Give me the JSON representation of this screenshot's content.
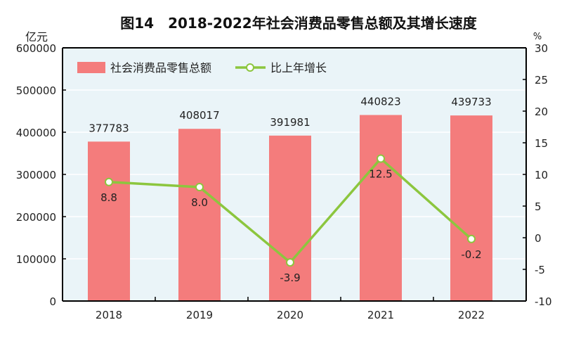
{
  "chart_data": {
    "type": "bar+line",
    "title": "图14　2018-2022年社会消费品零售总额及其增长速度",
    "categories": [
      "2018",
      "2019",
      "2020",
      "2021",
      "2022"
    ],
    "series": [
      {
        "name": "社会消费品零售总额",
        "type": "bar",
        "axis": "left",
        "values": [
          377783,
          408017,
          391981,
          440823,
          439733
        ],
        "labels": [
          "377783",
          "408017",
          "391981",
          "440823",
          "439733"
        ],
        "color": "#f47c7c"
      },
      {
        "name": "比上年增长",
        "type": "line",
        "axis": "right",
        "values": [
          8.8,
          8.0,
          -3.9,
          12.5,
          -0.2
        ],
        "labels": [
          "8.8",
          "8.0",
          "-3.9",
          "12.5",
          "-0.2"
        ],
        "color": "#8cc63e"
      }
    ],
    "ylabel_left": "亿元",
    "ylabel_right": "%",
    "ylim_left": [
      0,
      600000
    ],
    "ylim_right": [
      -10,
      30
    ],
    "yticks_left": [
      "0",
      "100000",
      "200000",
      "300000",
      "400000",
      "500000",
      "600000"
    ],
    "yticks_right": [
      "-10",
      "-5",
      "0",
      "5",
      "10",
      "15",
      "20",
      "25",
      "30"
    ],
    "legend": "top-left",
    "plot_background": "#eaf4f8",
    "grid": true
  }
}
